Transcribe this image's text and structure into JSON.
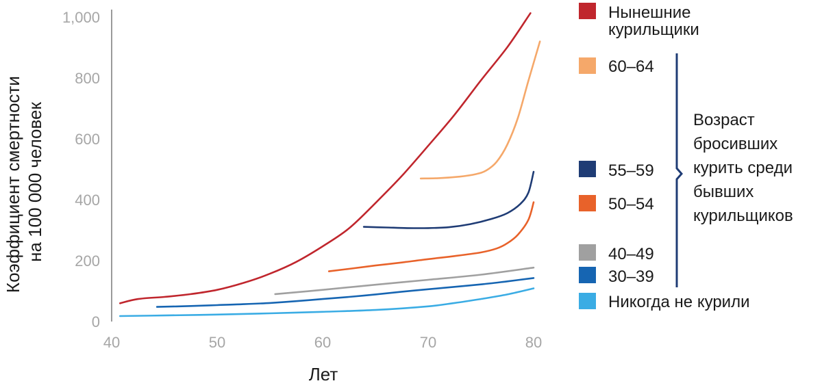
{
  "chart_data": {
    "type": "line",
    "title": "",
    "xlabel": "Лет",
    "ylabel_lines": [
      "Коэффициент смертности",
      "на 100 000 человек"
    ],
    "xlim": [
      40,
      81
    ],
    "ylim": [
      0,
      1000
    ],
    "x_ticks": [
      {
        "value": 40,
        "label": "40"
      },
      {
        "value": 50,
        "label": "50"
      },
      {
        "value": 60,
        "label": "60"
      },
      {
        "value": 70,
        "label": "70"
      },
      {
        "value": 80,
        "label": "80"
      }
    ],
    "y_ticks": [
      {
        "value": 0,
        "label": "0"
      },
      {
        "value": 200,
        "label": "200"
      },
      {
        "value": 400,
        "label": "400"
      },
      {
        "value": 600,
        "label": "600"
      },
      {
        "value": 800,
        "label": "800"
      },
      {
        "value": 1000,
        "label": "1,000"
      }
    ],
    "bracket_label_lines": [
      "Возраст",
      "бросивших",
      "курить среди",
      "бывших",
      "курильщиков"
    ],
    "series": [
      {
        "id": "current",
        "name_lines": [
          "Нынешние",
          "курильщики"
        ],
        "color": "#c0262d",
        "points": [
          [
            40.8,
            60
          ],
          [
            42.5,
            74
          ],
          [
            45,
            81
          ],
          [
            47.5,
            90
          ],
          [
            50,
            104
          ],
          [
            52.5,
            127
          ],
          [
            55,
            157
          ],
          [
            57.5,
            196
          ],
          [
            60,
            247
          ],
          [
            62.5,
            306
          ],
          [
            65,
            389
          ],
          [
            67.5,
            478
          ],
          [
            70,
            577
          ],
          [
            72.5,
            679
          ],
          [
            75,
            792
          ],
          [
            77.5,
            901
          ],
          [
            79.7,
            1013
          ]
        ]
      },
      {
        "id": "q60_64",
        "name_lines": [
          "60–64"
        ],
        "color": "#f5a86a",
        "points": [
          [
            69.3,
            470
          ],
          [
            71,
            471
          ],
          [
            73,
            476
          ],
          [
            74.5,
            484
          ],
          [
            75.5,
            496
          ],
          [
            76.5,
            525
          ],
          [
            77.5,
            581
          ],
          [
            78.5,
            668
          ],
          [
            79.5,
            790
          ],
          [
            80.6,
            920
          ]
        ]
      },
      {
        "id": "q55_59",
        "name_lines": [
          "55–59"
        ],
        "color": "#1f3c75",
        "points": [
          [
            63.9,
            311
          ],
          [
            66,
            309
          ],
          [
            68,
            307
          ],
          [
            70,
            307
          ],
          [
            72,
            310
          ],
          [
            74,
            320
          ],
          [
            76,
            337
          ],
          [
            77.5,
            356
          ],
          [
            78.7,
            385
          ],
          [
            79.5,
            423
          ],
          [
            80,
            492
          ]
        ]
      },
      {
        "id": "q50_54",
        "name_lines": [
          "50–54"
        ],
        "color": "#e8622a",
        "points": [
          [
            60.6,
            165
          ],
          [
            62.5,
            173
          ],
          [
            65,
            184
          ],
          [
            67.5,
            194
          ],
          [
            70,
            205
          ],
          [
            72.5,
            215
          ],
          [
            75,
            227
          ],
          [
            76.5,
            240
          ],
          [
            77.5,
            257
          ],
          [
            78.5,
            285
          ],
          [
            79.5,
            334
          ],
          [
            80,
            392
          ]
        ]
      },
      {
        "id": "q40_49",
        "name_lines": [
          "40–49"
        ],
        "color": "#a0a0a0",
        "points": [
          [
            55.5,
            90
          ],
          [
            60,
            104
          ],
          [
            65,
            121
          ],
          [
            70,
            137
          ],
          [
            75,
            154
          ],
          [
            80,
            177
          ]
        ]
      },
      {
        "id": "q30_39",
        "name_lines": [
          "30–39"
        ],
        "color": "#1665b2",
        "points": [
          [
            44.3,
            48
          ],
          [
            47.5,
            51
          ],
          [
            50,
            54
          ],
          [
            52.5,
            57
          ],
          [
            55,
            61
          ],
          [
            57.5,
            67
          ],
          [
            60,
            74
          ],
          [
            62.5,
            81
          ],
          [
            65,
            89
          ],
          [
            67.5,
            98
          ],
          [
            70,
            106
          ],
          [
            72.5,
            114
          ],
          [
            75,
            122
          ],
          [
            77.5,
            132
          ],
          [
            80,
            143
          ]
        ]
      },
      {
        "id": "never",
        "name_lines": [
          "Никогда не курили"
        ],
        "color": "#3aace4",
        "points": [
          [
            40.8,
            18
          ],
          [
            45,
            20
          ],
          [
            50,
            23
          ],
          [
            55,
            27
          ],
          [
            60,
            32
          ],
          [
            65,
            38
          ],
          [
            70,
            50
          ],
          [
            72.5,
            61
          ],
          [
            75,
            74
          ],
          [
            77.5,
            89
          ],
          [
            80,
            109
          ]
        ]
      }
    ]
  }
}
